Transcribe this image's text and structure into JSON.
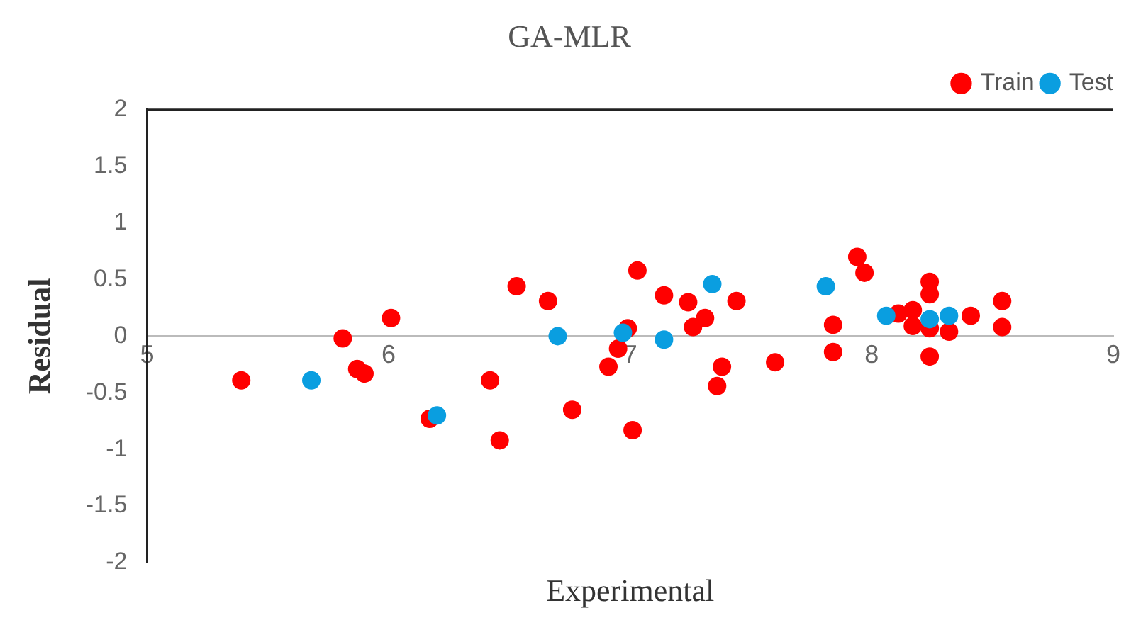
{
  "chart_data": {
    "type": "scatter",
    "title": "GA-MLR",
    "xlabel": "Experimental",
    "ylabel": "Residual",
    "xlim": [
      5,
      9
    ],
    "xticks": [
      5,
      6,
      7,
      8,
      9
    ],
    "ylim": [
      -2,
      2
    ],
    "yticks": [
      -2,
      -1.5,
      -1,
      -0.5,
      0,
      0.5,
      1,
      1.5,
      2
    ],
    "grid": false,
    "legend": "top right",
    "marker": "circle",
    "series": [
      {
        "name": "Train",
        "color": "#ff0000",
        "x": [
          5.39,
          5.81,
          5.87,
          5.9,
          6.01,
          6.17,
          6.53,
          6.66,
          6.42,
          6.46,
          6.76,
          7.03,
          6.99,
          6.95,
          6.91,
          7.01,
          7.14,
          7.24,
          7.31,
          7.26,
          7.44,
          7.38,
          7.36,
          7.6,
          7.94,
          7.97,
          7.84,
          7.84,
          8.11,
          8.17,
          8.17,
          8.24,
          8.24,
          8.24,
          8.24,
          8.32,
          8.41,
          8.54,
          8.54
        ],
        "values": [
          -0.39,
          -0.02,
          -0.29,
          -0.33,
          0.16,
          -0.73,
          0.44,
          0.31,
          -0.39,
          -0.92,
          -0.65,
          0.58,
          0.07,
          -0.11,
          -0.27,
          -0.83,
          0.36,
          0.3,
          0.16,
          0.08,
          0.31,
          -0.27,
          -0.44,
          -0.23,
          0.7,
          0.56,
          0.1,
          -0.14,
          0.2,
          0.23,
          0.09,
          0.48,
          0.37,
          0.07,
          -0.18,
          0.04,
          0.18,
          0.31,
          0.08
        ]
      },
      {
        "name": "Test",
        "color": "#0a9ee0",
        "x": [
          5.68,
          6.2,
          6.7,
          6.97,
          7.14,
          7.34,
          7.81,
          8.06,
          8.24,
          8.32
        ],
        "values": [
          -0.39,
          -0.7,
          0,
          0.03,
          -0.03,
          0.46,
          0.44,
          0.18,
          0.15,
          0.18
        ]
      }
    ]
  }
}
